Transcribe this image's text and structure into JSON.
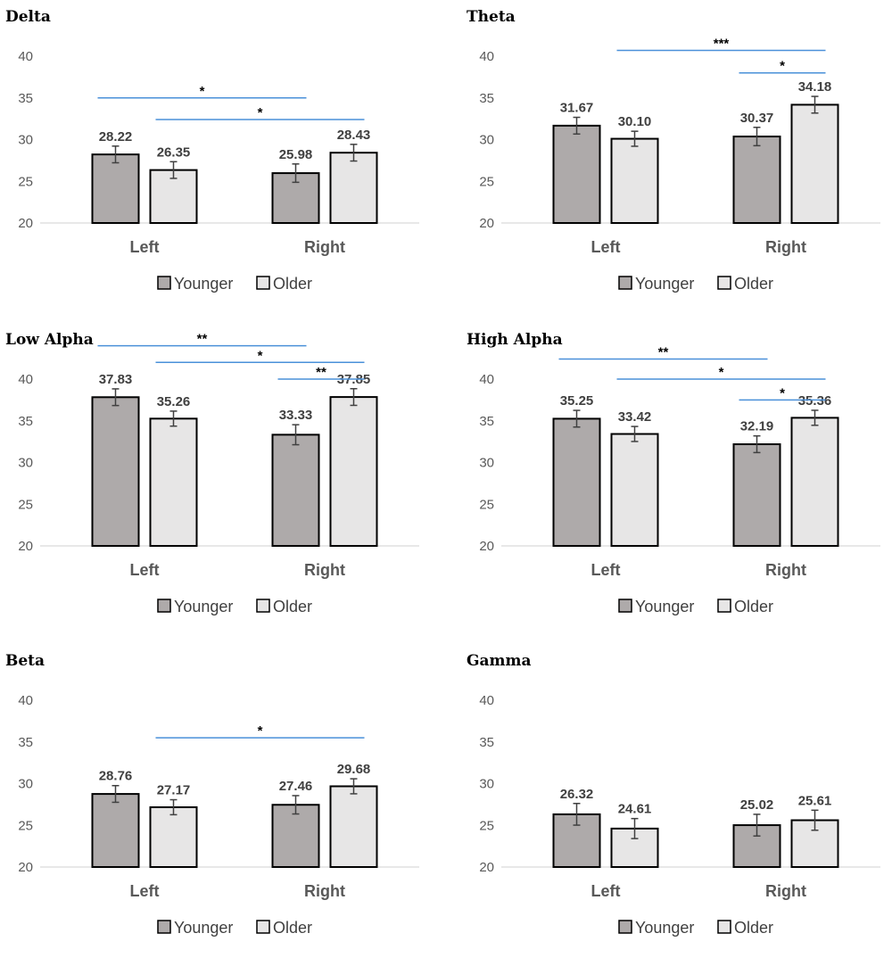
{
  "colors": {
    "younger": "#AEAAAA",
    "older": "#E7E6E6",
    "bar_stroke": "#000000",
    "sig_line": "#4A90D9",
    "axis": "#D9D9D9"
  },
  "legend": {
    "younger": "Younger",
    "older": "Older"
  },
  "chart_data": [
    {
      "type": "bar",
      "title": "Delta",
      "categories": [
        "Left",
        "Right"
      ],
      "series": [
        {
          "name": "Younger",
          "values": [
            28.22,
            25.98
          ],
          "errors": [
            1.0,
            1.1
          ]
        },
        {
          "name": "Older",
          "values": [
            26.35,
            28.43
          ],
          "errors": [
            1.0,
            1.0
          ]
        }
      ],
      "value_labels": [
        [
          "28.22",
          "25.98"
        ],
        [
          "26.35",
          "28.43"
        ]
      ],
      "yticks": [
        "20",
        "25",
        "30",
        "35",
        "40"
      ],
      "ylim": [
        20,
        40
      ],
      "significance": [
        {
          "from": [
            0,
            0
          ],
          "to": [
            1,
            0
          ],
          "y": 35.0,
          "label": "*"
        },
        {
          "from": [
            0,
            1
          ],
          "to": [
            1,
            1
          ],
          "y": 32.4,
          "label": "*"
        }
      ]
    },
    {
      "type": "bar",
      "title": "Theta",
      "categories": [
        "Left",
        "Right"
      ],
      "series": [
        {
          "name": "Younger",
          "values": [
            31.67,
            30.37
          ],
          "errors": [
            1.0,
            1.1
          ]
        },
        {
          "name": "Older",
          "values": [
            30.1,
            34.18
          ],
          "errors": [
            0.9,
            1.0
          ]
        }
      ],
      "value_labels": [
        [
          "31.67",
          "30.37"
        ],
        [
          "30.10",
          "34.18"
        ]
      ],
      "yticks": [
        "20",
        "25",
        "30",
        "35",
        "40"
      ],
      "ylim": [
        20,
        40
      ],
      "significance": [
        {
          "from": [
            0,
            1
          ],
          "to": [
            1,
            1
          ],
          "y": 40.7,
          "label": "***"
        },
        {
          "from": [
            1,
            0
          ],
          "to": [
            1,
            1
          ],
          "y": 38.0,
          "label": "*"
        }
      ]
    },
    {
      "type": "bar",
      "title": "Low Alpha",
      "categories": [
        "Left",
        "Right"
      ],
      "series": [
        {
          "name": "Younger",
          "values": [
            37.83,
            33.33
          ],
          "errors": [
            1.0,
            1.2
          ]
        },
        {
          "name": "Older",
          "values": [
            35.26,
            37.85
          ],
          "errors": [
            0.9,
            1.0
          ]
        }
      ],
      "value_labels": [
        [
          "37.83",
          "33.33"
        ],
        [
          "35.26",
          "37.85"
        ]
      ],
      "yticks": [
        "20",
        "25",
        "30",
        "35",
        "40"
      ],
      "ylim": [
        20,
        40
      ],
      "significance": [
        {
          "from": [
            0,
            0
          ],
          "to": [
            1,
            0
          ],
          "y": 44.0,
          "label": "**"
        },
        {
          "from": [
            0,
            1
          ],
          "to": [
            1,
            1
          ],
          "y": 42.0,
          "label": "*"
        },
        {
          "from": [
            1,
            0
          ],
          "to": [
            1,
            1
          ],
          "y": 40.0,
          "label": "**"
        }
      ]
    },
    {
      "type": "bar",
      "title": "High Alpha",
      "categories": [
        "Left",
        "Right"
      ],
      "series": [
        {
          "name": "Younger",
          "values": [
            35.25,
            32.19
          ],
          "errors": [
            1.0,
            1.0
          ]
        },
        {
          "name": "Older",
          "values": [
            33.42,
            35.36
          ],
          "errors": [
            0.9,
            0.9
          ]
        }
      ],
      "value_labels": [
        [
          "35.25",
          "32.19"
        ],
        [
          "33.42",
          "35.36"
        ]
      ],
      "yticks": [
        "20",
        "25",
        "30",
        "35",
        "40"
      ],
      "ylim": [
        20,
        40
      ],
      "significance": [
        {
          "from": [
            0,
            0
          ],
          "to": [
            1,
            0
          ],
          "y": 42.4,
          "label": "**"
        },
        {
          "from": [
            0,
            1
          ],
          "to": [
            1,
            1
          ],
          "y": 40.0,
          "label": "*"
        },
        {
          "from": [
            1,
            0
          ],
          "to": [
            1,
            1
          ],
          "y": 37.5,
          "label": "*"
        }
      ]
    },
    {
      "type": "bar",
      "title": "Beta",
      "categories": [
        "Left",
        "Right"
      ],
      "series": [
        {
          "name": "Younger",
          "values": [
            28.76,
            27.46
          ],
          "errors": [
            1.0,
            1.1
          ]
        },
        {
          "name": "Older",
          "values": [
            27.17,
            29.68
          ],
          "errors": [
            0.9,
            0.9
          ]
        }
      ],
      "value_labels": [
        [
          "28.76",
          "27.46"
        ],
        [
          "27.17",
          "29.68"
        ]
      ],
      "yticks": [
        "20",
        "25",
        "30",
        "35",
        "40"
      ],
      "ylim": [
        20,
        40
      ],
      "significance": [
        {
          "from": [
            0,
            1
          ],
          "to": [
            1,
            1
          ],
          "y": 35.5,
          "label": "*"
        }
      ]
    },
    {
      "type": "bar",
      "title": "Gamma",
      "categories": [
        "Left",
        "Right"
      ],
      "series": [
        {
          "name": "Younger",
          "values": [
            26.32,
            25.02
          ],
          "errors": [
            1.3,
            1.3
          ]
        },
        {
          "name": "Older",
          "values": [
            24.61,
            25.61
          ],
          "errors": [
            1.2,
            1.2
          ]
        }
      ],
      "value_labels": [
        [
          "26.32",
          "25.02"
        ],
        [
          "24.61",
          "25.61"
        ]
      ],
      "yticks": [
        "20",
        "25",
        "30",
        "35",
        "40"
      ],
      "ylim": [
        20,
        40
      ],
      "significance": []
    }
  ]
}
